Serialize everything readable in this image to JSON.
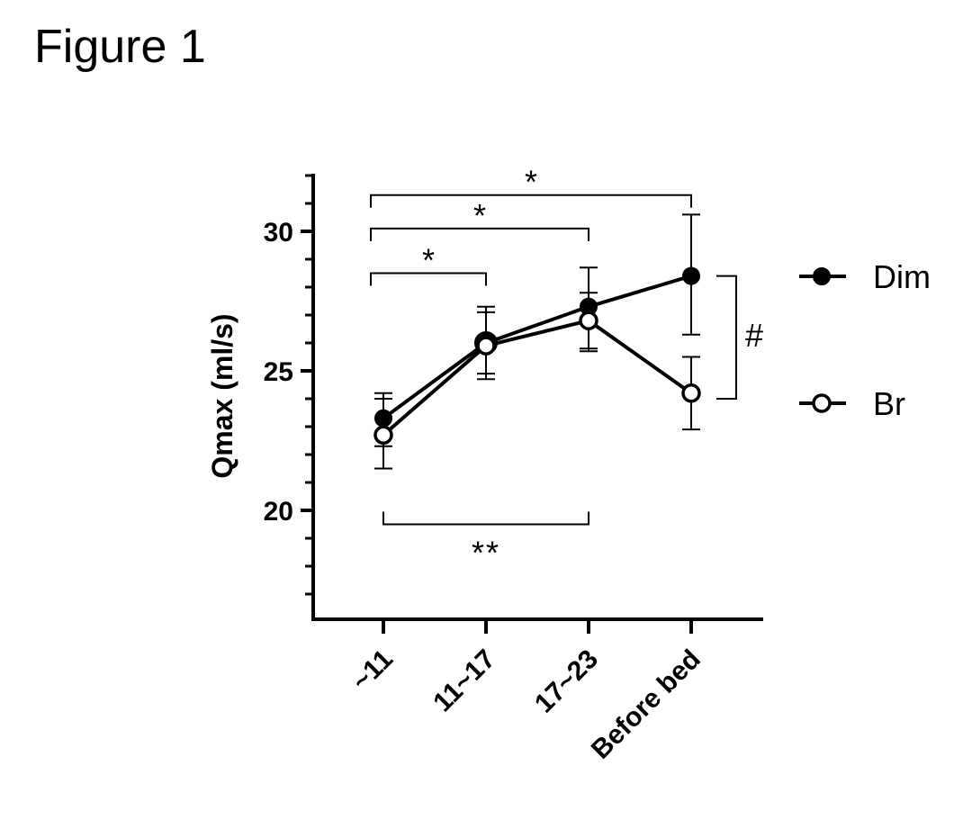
{
  "figure_title": "Figure 1",
  "chart_data": {
    "type": "line",
    "title": "",
    "xlabel": "",
    "ylabel": "Qmax (ml/s)",
    "categories": [
      "~11",
      "11~17",
      "17~23",
      "Before bed"
    ],
    "ylim": [
      16,
      32
    ],
    "yticks": [
      20,
      25,
      30
    ],
    "series": [
      {
        "name": "Dim",
        "marker": "filled-circle",
        "values": [
          23.3,
          26.0,
          27.3,
          28.4
        ],
        "err_low": [
          22.3,
          24.7,
          25.8,
          26.3
        ],
        "err_high": [
          24.2,
          27.3,
          28.7,
          30.6
        ]
      },
      {
        "name": "Br",
        "marker": "open-circle",
        "values": [
          22.7,
          25.9,
          26.8,
          24.2
        ],
        "err_low": [
          21.5,
          24.9,
          25.7,
          22.9
        ],
        "err_high": [
          24.0,
          27.1,
          27.8,
          25.5
        ]
      }
    ],
    "legend": "right",
    "grid": false,
    "annotations": [
      {
        "label": "*",
        "from": 0,
        "to": 3,
        "level": 31.3,
        "side": "above"
      },
      {
        "label": "*",
        "from": 0,
        "to": 2,
        "level": 30.1,
        "side": "above"
      },
      {
        "label": "*",
        "from": 0,
        "to": 1,
        "level": 28.5,
        "side": "above"
      },
      {
        "label": "**",
        "from": 0,
        "to": 2,
        "level": 19.5,
        "side": "below"
      },
      {
        "label": "#",
        "at": 3,
        "y_from": 28.4,
        "y_to": 24.0,
        "side": "right"
      }
    ]
  }
}
